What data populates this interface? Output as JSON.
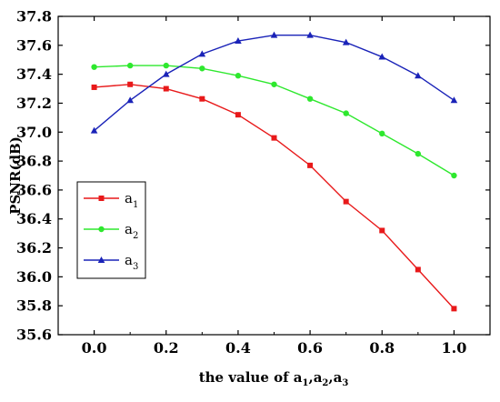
{
  "chart_data": {
    "type": "line",
    "xlabel": {
      "base": "the value of a",
      "subs": [
        "1",
        "2",
        "3"
      ],
      "sep": ","
    },
    "ylabel": "PSNR(dB)",
    "xlim": [
      -0.1,
      1.1
    ],
    "ylim": [
      35.6,
      37.8
    ],
    "xticks": [
      "0.0",
      "0.2",
      "0.4",
      "0.6",
      "0.8",
      "1.0"
    ],
    "yticks": [
      "35.6",
      "35.8",
      "36.0",
      "36.2",
      "36.4",
      "36.6",
      "36.8",
      "37.0",
      "37.2",
      "37.4",
      "37.6",
      "37.8"
    ],
    "x": [
      0.0,
      0.1,
      0.2,
      0.3,
      0.4,
      0.5,
      0.6,
      0.7,
      0.8,
      0.9,
      1.0
    ],
    "grid": false,
    "legend_position": "left-middle",
    "series": [
      {
        "name": "a",
        "sub": "1",
        "color": "#e8191a",
        "marker": "square",
        "values": [
          37.31,
          37.33,
          37.3,
          37.23,
          37.12,
          36.96,
          36.77,
          36.52,
          36.32,
          36.05,
          35.78
        ]
      },
      {
        "name": "a",
        "sub": "2",
        "color": "#2ee82e",
        "marker": "circle",
        "values": [
          37.45,
          37.46,
          37.46,
          37.44,
          37.39,
          37.33,
          37.23,
          37.13,
          36.99,
          36.85,
          36.7
        ]
      },
      {
        "name": "a",
        "sub": "3",
        "color": "#1a23b8",
        "marker": "triangle",
        "values": [
          37.01,
          37.22,
          37.4,
          37.54,
          37.63,
          37.67,
          37.67,
          37.62,
          37.52,
          37.39,
          37.22
        ]
      }
    ]
  }
}
